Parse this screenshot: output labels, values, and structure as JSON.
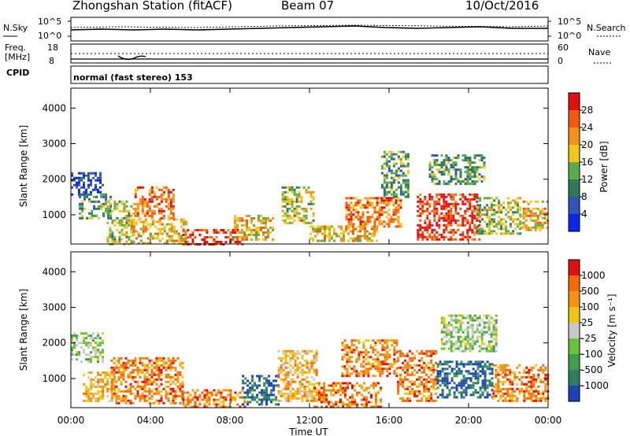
{
  "header": {
    "station": "Zhongshan Station (fitACF)",
    "beam": "Beam 07",
    "date": "10/Oct/2016"
  },
  "sky_panel": {
    "left_label": "N.Sky",
    "right_label": "N.Search",
    "left_ticks": [
      "10^5",
      "10^0"
    ],
    "right_ticks": [
      "10^5",
      "10^0"
    ]
  },
  "freq_panel": {
    "left_label_top": "Freq.",
    "left_label_unit": "[MHz]",
    "right_label": "Nave",
    "left_ticks": [
      "18",
      "8"
    ],
    "right_ticks": [
      "60",
      "0"
    ]
  },
  "cpid": {
    "label": "CPID",
    "value": "normal (fast stereo) 153"
  },
  "chart_data": [
    {
      "type": "heatmap",
      "name": "power",
      "xlabel": "",
      "ylabel": "Slant Range [km]",
      "x_ticks": [
        "00:00",
        "04:00",
        "08:00",
        "12:00",
        "16:00",
        "20:00",
        "00:00"
      ],
      "y_ticks": [
        1000,
        2000,
        3000,
        4000
      ],
      "xlim": [
        0,
        24
      ],
      "ylim": [
        180,
        4560
      ],
      "colorbar": {
        "label": "Power [dB]",
        "ticks": [
          4,
          8,
          12,
          16,
          20,
          24,
          28
        ],
        "colors": [
          "#0a28e6",
          "#3452b8",
          "#2e7a58",
          "#5aae4a",
          "#f2c818",
          "#f29018",
          "#f05a10",
          "#e01010"
        ]
      },
      "patches": [
        {
          "t0": 0.0,
          "t1": 1.6,
          "r0": 1600,
          "r1": 2200,
          "level": 1
        },
        {
          "t0": 0.4,
          "t1": 2.0,
          "r0": 900,
          "r1": 1600,
          "level": 3
        },
        {
          "t0": 1.8,
          "t1": 3.2,
          "r0": 200,
          "r1": 1400,
          "level": 4
        },
        {
          "t0": 3.2,
          "t1": 5.2,
          "r0": 900,
          "r1": 1800,
          "level": 6
        },
        {
          "t0": 3.0,
          "t1": 5.8,
          "r0": 200,
          "r1": 900,
          "level": 5
        },
        {
          "t0": 5.6,
          "t1": 8.6,
          "r0": 200,
          "r1": 600,
          "level": 7
        },
        {
          "t0": 8.2,
          "t1": 10.2,
          "r0": 300,
          "r1": 1000,
          "level": 5
        },
        {
          "t0": 10.6,
          "t1": 12.2,
          "r0": 800,
          "r1": 1800,
          "level": 4
        },
        {
          "t0": 12.0,
          "t1": 15.4,
          "r0": 300,
          "r1": 700,
          "level": 5
        },
        {
          "t0": 13.8,
          "t1": 16.6,
          "r0": 700,
          "r1": 1500,
          "level": 6
        },
        {
          "t0": 15.6,
          "t1": 17.0,
          "r0": 1500,
          "r1": 2800,
          "level": 3
        },
        {
          "t0": 17.4,
          "t1": 20.6,
          "r0": 300,
          "r1": 1600,
          "level": 7
        },
        {
          "t0": 18.0,
          "t1": 20.8,
          "r0": 1900,
          "r1": 2700,
          "level": 3
        },
        {
          "t0": 20.4,
          "t1": 22.6,
          "r0": 500,
          "r1": 1500,
          "level": 4
        },
        {
          "t0": 22.6,
          "t1": 24.0,
          "r0": 600,
          "r1": 1400,
          "level": 5
        }
      ]
    },
    {
      "type": "heatmap",
      "name": "velocity",
      "xlabel": "Time UT",
      "ylabel": "Slant Range [km]",
      "x_ticks": [
        "00:00",
        "04:00",
        "08:00",
        "12:00",
        "16:00",
        "20:00",
        "00:00"
      ],
      "y_ticks": [
        1000,
        2000,
        3000,
        4000
      ],
      "xlim": [
        0,
        24
      ],
      "ylim": [
        180,
        4560
      ],
      "colorbar": {
        "label": "Velocity [m s⁻¹]",
        "ticks": [
          "1000",
          "500",
          "100",
          "25",
          "-25",
          "-100",
          "-500",
          "-1000"
        ],
        "colors": [
          "#1c44b4",
          "#2f7e60",
          "#3f9e4a",
          "#6ac23c",
          "#c8c8c8",
          "#f2c414",
          "#f2940e",
          "#f26a0a",
          "#e01010"
        ]
      },
      "patches": [
        {
          "t0": 0.0,
          "t1": 1.6,
          "r0": 1500,
          "r1": 2300,
          "level": 4
        },
        {
          "t0": 0.6,
          "t1": 2.2,
          "r0": 400,
          "r1": 1200,
          "level": 6
        },
        {
          "t0": 2.0,
          "t1": 5.6,
          "r0": 300,
          "r1": 1600,
          "level": 7
        },
        {
          "t0": 5.6,
          "t1": 8.8,
          "r0": 200,
          "r1": 700,
          "level": 7
        },
        {
          "t0": 8.6,
          "t1": 10.4,
          "r0": 300,
          "r1": 1100,
          "level": 1
        },
        {
          "t0": 10.4,
          "t1": 12.4,
          "r0": 400,
          "r1": 1800,
          "level": 6
        },
        {
          "t0": 12.2,
          "t1": 15.6,
          "r0": 200,
          "r1": 900,
          "level": 7
        },
        {
          "t0": 13.6,
          "t1": 16.4,
          "r0": 1100,
          "r1": 2100,
          "level": 7
        },
        {
          "t0": 16.4,
          "t1": 18.4,
          "r0": 400,
          "r1": 1800,
          "level": 7
        },
        {
          "t0": 18.4,
          "t1": 21.2,
          "r0": 500,
          "r1": 1500,
          "level": 1
        },
        {
          "t0": 18.6,
          "t1": 21.4,
          "r0": 1800,
          "r1": 2800,
          "level": 4
        },
        {
          "t0": 21.2,
          "t1": 24.0,
          "r0": 400,
          "r1": 1400,
          "level": 7
        }
      ]
    }
  ]
}
